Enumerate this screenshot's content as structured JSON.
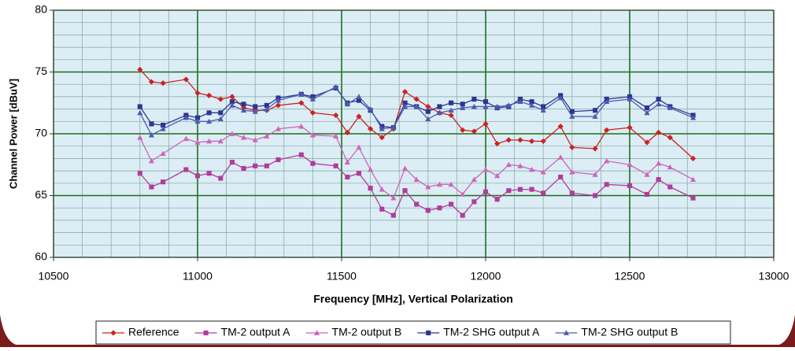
{
  "chart_data": {
    "type": "line",
    "xlabel": "Frequency [MHz], Vertical Polarization",
    "ylabel": "Channel Power [dBuV]",
    "x": [
      10800,
      10840,
      10880,
      10960,
      11000,
      11040,
      11080,
      11120,
      11160,
      11200,
      11240,
      11280,
      11360,
      11400,
      11480,
      11520,
      11560,
      11600,
      11640,
      11680,
      11720,
      11760,
      11800,
      11840,
      11880,
      11920,
      11960,
      12000,
      12040,
      12080,
      12120,
      12160,
      12200,
      12260,
      12300,
      12380,
      12420,
      12500,
      12560,
      12600,
      12640,
      12720
    ],
    "xlim": [
      10500,
      13000
    ],
    "xticks": [
      10500,
      11000,
      11500,
      12000,
      12500,
      13000
    ],
    "ylim": [
      60,
      80
    ],
    "yticks": [
      60,
      65,
      70,
      75,
      80
    ],
    "grid": true,
    "legend": "bottom",
    "series": [
      {
        "name": "Reference",
        "color": "#cc2222",
        "marker": "diamond",
        "values": [
          75.2,
          74.2,
          74.1,
          74.4,
          73.3,
          73.1,
          72.8,
          73.0,
          72.1,
          71.9,
          71.9,
          72.3,
          72.5,
          71.7,
          71.5,
          70.1,
          71.4,
          70.4,
          69.7,
          70.4,
          73.4,
          72.8,
          72.2,
          71.7,
          71.5,
          70.3,
          70.2,
          70.8,
          69.2,
          69.5,
          69.5,
          69.4,
          69.4,
          70.6,
          68.9,
          68.8,
          70.3,
          70.5,
          69.3,
          70.1,
          69.7,
          68.0
        ]
      },
      {
        "name": "TM-2 output A",
        "color": "#b03c9c",
        "marker": "square",
        "values": [
          66.8,
          65.7,
          66.1,
          67.1,
          66.6,
          66.8,
          66.4,
          67.7,
          67.2,
          67.4,
          67.4,
          67.9,
          68.3,
          67.6,
          67.4,
          66.5,
          66.8,
          65.6,
          63.9,
          63.4,
          65.4,
          64.3,
          63.8,
          64.0,
          64.3,
          63.4,
          64.5,
          65.3,
          64.7,
          65.4,
          65.5,
          65.5,
          65.2,
          66.5,
          65.2,
          65.0,
          65.9,
          65.8,
          65.1,
          66.3,
          65.7,
          64.8
        ]
      },
      {
        "name": "TM-2 output B",
        "color": "#cc66bb",
        "marker": "triangle",
        "values": [
          69.7,
          67.8,
          68.4,
          69.6,
          69.3,
          69.4,
          69.4,
          70.0,
          69.7,
          69.5,
          69.8,
          70.4,
          70.6,
          69.9,
          69.8,
          67.7,
          68.9,
          67.1,
          65.5,
          64.8,
          67.2,
          66.3,
          65.7,
          65.9,
          65.9,
          65.1,
          66.3,
          67.1,
          66.6,
          67.5,
          67.4,
          67.1,
          66.9,
          68.1,
          66.9,
          66.7,
          67.8,
          67.5,
          66.7,
          67.6,
          67.3,
          66.3
        ]
      },
      {
        "name": "TM-2 SHG output A",
        "color": "#2e3590",
        "marker": "square",
        "values": [
          72.2,
          70.8,
          70.7,
          71.5,
          71.3,
          71.7,
          71.7,
          72.6,
          72.4,
          72.2,
          72.3,
          72.9,
          73.2,
          73.0,
          73.7,
          72.5,
          72.7,
          71.9,
          70.6,
          70.5,
          72.5,
          72.2,
          71.8,
          72.2,
          72.5,
          72.4,
          72.8,
          72.6,
          72.1,
          72.2,
          72.8,
          72.6,
          72.2,
          73.1,
          71.8,
          71.9,
          72.8,
          73.0,
          72.1,
          72.8,
          72.2,
          71.5
        ]
      },
      {
        "name": "TM-2 SHG output B",
        "color": "#4a5cb0",
        "marker": "triangle",
        "values": [
          71.7,
          69.9,
          70.4,
          71.3,
          71.0,
          71.0,
          71.2,
          72.3,
          71.9,
          71.8,
          72.0,
          72.7,
          73.2,
          72.8,
          73.8,
          72.4,
          73.0,
          72.0,
          70.4,
          70.5,
          72.2,
          72.2,
          71.2,
          71.7,
          71.9,
          72.1,
          72.2,
          72.2,
          72.2,
          72.3,
          72.6,
          72.3,
          71.9,
          72.9,
          71.4,
          71.4,
          72.6,
          72.8,
          71.7,
          72.4,
          72.1,
          71.3
        ]
      }
    ]
  }
}
